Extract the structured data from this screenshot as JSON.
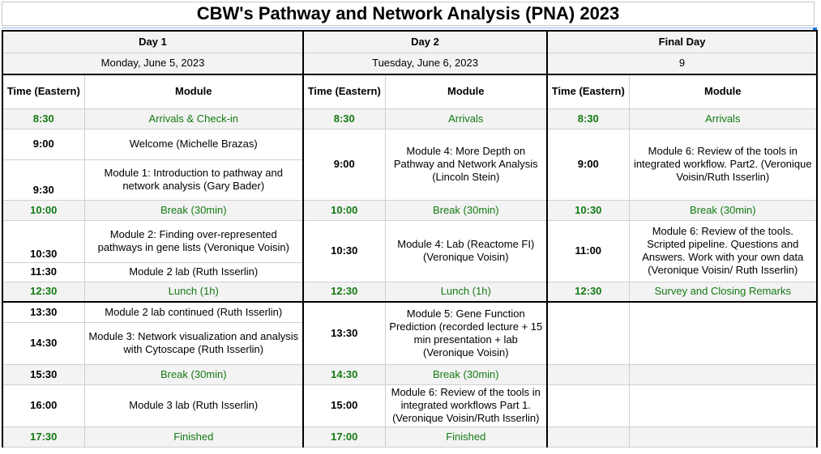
{
  "title": "CBW's Pathway and Network Analysis (PNA) 2023",
  "days": [
    {
      "label": "Day 1",
      "date": "Monday, June 5, 2023"
    },
    {
      "label": "Day 2",
      "date": "Tuesday, June 6, 2023"
    },
    {
      "label": "Final Day",
      "date": "9"
    }
  ],
  "headers": {
    "time": "Time (Eastern)",
    "module": "Module"
  },
  "day1": {
    "t_830": "8:30",
    "m_arrivals": "Arrivals & Check-in",
    "t_900": "9:00",
    "m_welcome": "Welcome (Michelle Brazas)",
    "t_930": "9:30",
    "m_module1": "Module 1:  Introduction to pathway and network analysis (Gary Bader)",
    "t_1000": "10:00",
    "m_break1": "Break (30min)",
    "t_1030": "10:30",
    "m_module2": "Module 2: Finding over-represented pathways in gene lists (Veronique Voisin)",
    "t_1130": "11:30",
    "m_module2lab": "Module 2 lab (Ruth Isserlin)",
    "t_1230": "12:30",
    "m_lunch": "Lunch (1h)",
    "t_1330": "13:30",
    "m_module2cont": "Module 2 lab continued  (Ruth Isserlin)",
    "t_1430": "14:30",
    "m_module3": "Module 3: Network visualization and analysis with Cytoscape (Ruth Isserlin)",
    "t_1530": "15:30",
    "m_break2": "Break (30min)",
    "t_1600": "16:00",
    "m_module3lab": "Module 3 lab (Ruth Isserlin)",
    "t_1730": "17:30",
    "m_finished": "Finished"
  },
  "day2": {
    "t_830": "8:30",
    "m_arrivals": "Arrivals",
    "t_900": "9:00",
    "m_module4": "Module 4: More Depth on Pathway and Network Analysis (Lincoln Stein)",
    "t_1000": "10:00",
    "m_break1": "Break (30min)",
    "t_1030": "10:30",
    "m_module4lab": "Module 4: Lab (Reactome  FI) (Veronique Voisin)",
    "t_1230": "12:30",
    "m_lunch": "Lunch (1h)",
    "t_1330": "13:30",
    "m_module5": "Module 5: Gene Function Prediction (recorded lecture  + 15 min presentation + lab (Veronique Voisin)",
    "t_1430": "14:30",
    "m_break2": "Break (30min)",
    "t_1500": "15:00",
    "m_module6p1": "Module 6: Review of the tools in integrated workflows Part 1. (Veronique Voisin/Ruth Isserlin)",
    "t_1700": "17:00",
    "m_finished": "Finished"
  },
  "day3": {
    "t_830": "8:30",
    "m_arrivals": "Arrivals",
    "t_900": "9:00",
    "m_module6p2": "Module 6: Review of the tools in integrated workflow. Part2. (Veronique Voisin/Ruth Isserlin)",
    "t_1030": "10:30",
    "m_break": "Break (30min)",
    "t_1100": "11:00",
    "m_module6scripted": "Module 6: Review of the tools. Scripted pipeline. Questions and Answers. Work with your own data (Veronique Voisin/ Ruth Isserlin)",
    "t_1230": "12:30",
    "m_survey": "Survey and Closing Remarks"
  }
}
